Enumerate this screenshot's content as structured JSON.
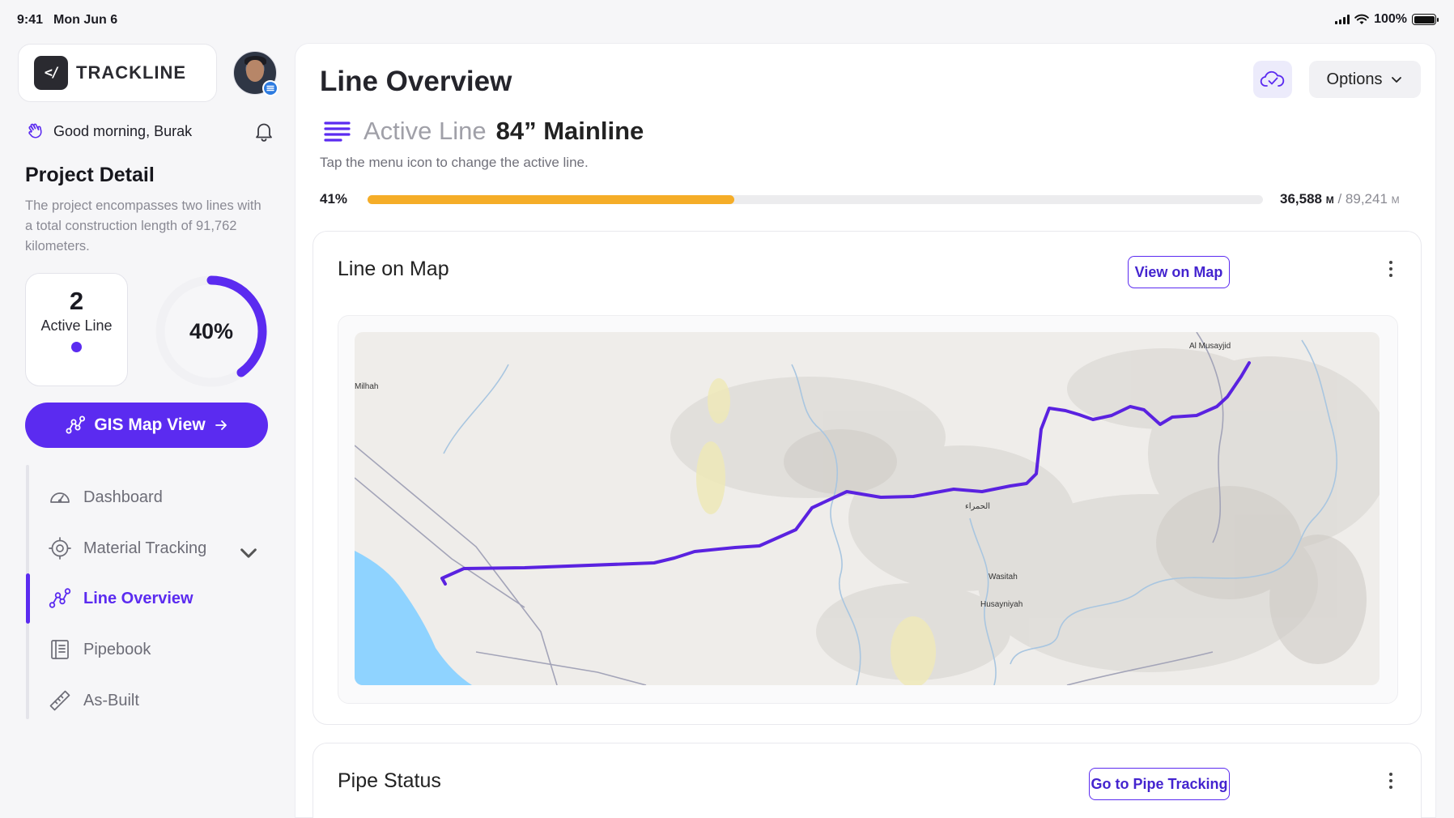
{
  "status_bar": {
    "time": "9:41",
    "date": "Mon Jun 6",
    "battery": "100%"
  },
  "brand": {
    "logo_glyph": "</",
    "name": "TRACKLINE"
  },
  "greeting": "Good morning, Burak",
  "project": {
    "title": "Project Detail",
    "description": "The project encompasses two lines with a total construction length of 91,762 kilometers.",
    "active_count": "2",
    "active_label": "Active Line",
    "progress_text": "40%",
    "progress_value": 0.4
  },
  "gis_button": "GIS Map View",
  "nav": [
    {
      "label": "Dashboard",
      "icon": "gauge-icon",
      "active": false
    },
    {
      "label": "Material Tracking",
      "icon": "target-icon",
      "active": false,
      "expandable": true
    },
    {
      "label": "Line Overview",
      "icon": "route-icon",
      "active": true
    },
    {
      "label": "Pipebook",
      "icon": "book-icon",
      "active": false
    },
    {
      "label": "As-Built",
      "icon": "ruler-icon",
      "active": false
    }
  ],
  "main": {
    "title": "Line Overview",
    "options_label": "Options",
    "active_line_prefix": "Active Line",
    "active_line_name": "84” Mainline",
    "hint": "Tap the menu icon to change the active line.",
    "progress_pct": "41%",
    "progress_value": 0.41,
    "done_length": "36,588",
    "done_unit": "M",
    "total_length": "89,241",
    "total_unit": "M"
  },
  "map_card": {
    "title": "Line on Map",
    "button": "View on Map",
    "places": [
      "Al Musayjid",
      "Milhah",
      "الحمراء",
      "Wasitah",
      "Husayniyah"
    ]
  },
  "pipe_card": {
    "title": "Pipe Status",
    "button": "Go to Pipe Tracking"
  },
  "colors": {
    "accent": "#5B2BF0",
    "progress": "#F5AD28",
    "water": "#8FD3FF",
    "route": "#5A22E0"
  }
}
